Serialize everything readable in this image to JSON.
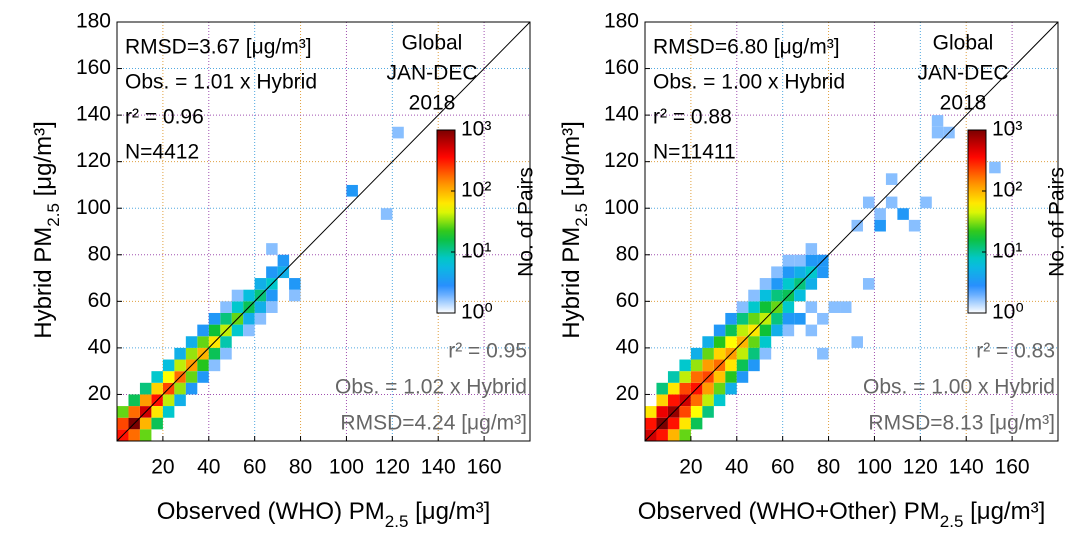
{
  "chart_data": [
    {
      "type": "hist2d",
      "stats_top": [
        "RMSD=3.67 [μg/m³]",
        "Obs. = 1.01 x Hybrid",
        "r² = 0.96",
        "N=4412"
      ],
      "stats_bottom": [
        "r² = 0.95",
        "Obs. = 1.02 x Hybrid",
        "RMSD=4.24 [μg/m³]"
      ],
      "region": [
        "Global",
        "JAN-DEC",
        "2018"
      ],
      "xlabel": {
        "text": "Observed (WHO) PM",
        "sub": "2.5",
        "unit": " [μg/m³]"
      },
      "ylabel": {
        "text": "Hybrid PM",
        "sub": "2.5",
        "unit": " [μg/m³]"
      },
      "colorbar_label": "No. of Pairs",
      "clim": [
        1,
        1000
      ],
      "cticks": [
        {
          "value": 1,
          "label": "10⁰"
        },
        {
          "value": 10,
          "label": "10¹"
        },
        {
          "value": 100,
          "label": "10²"
        },
        {
          "value": 1000,
          "label": "10³"
        }
      ],
      "color_log": true,
      "colormap": [
        "#ffffff",
        "#2a8cff",
        "#00c8d8",
        "#10c020",
        "#ffff00",
        "#ff8c00",
        "#ff0000",
        "#7a0000"
      ],
      "grid": true,
      "grid_colors": [
        "#e0a040",
        "#a050b0",
        "#50a8e0"
      ],
      "bin_width": 5,
      "xlim": [
        0,
        180
      ],
      "ylim": [
        0,
        180
      ],
      "xticks": [
        20,
        40,
        60,
        80,
        100,
        120,
        140,
        160
      ],
      "yticks": [
        20,
        40,
        60,
        80,
        100,
        120,
        140,
        160,
        180
      ],
      "cells": [
        [
          0,
          0,
          300
        ],
        [
          5,
          5,
          1000
        ],
        [
          10,
          10,
          500
        ],
        [
          15,
          15,
          300
        ],
        [
          20,
          20,
          200
        ],
        [
          25,
          25,
          150
        ],
        [
          30,
          30,
          100
        ],
        [
          35,
          35,
          80
        ],
        [
          40,
          40,
          50
        ],
        [
          45,
          45,
          30
        ],
        [
          50,
          50,
          20
        ],
        [
          55,
          55,
          10
        ],
        [
          60,
          60,
          8
        ],
        [
          65,
          65,
          5
        ],
        [
          70,
          70,
          3
        ],
        [
          0,
          5,
          200
        ],
        [
          5,
          10,
          150
        ],
        [
          10,
          15,
          100
        ],
        [
          15,
          20,
          60
        ],
        [
          20,
          25,
          40
        ],
        [
          25,
          30,
          30
        ],
        [
          30,
          35,
          25
        ],
        [
          35,
          40,
          20
        ],
        [
          40,
          45,
          12
        ],
        [
          45,
          50,
          8
        ],
        [
          50,
          55,
          5
        ],
        [
          55,
          60,
          4
        ],
        [
          60,
          65,
          3
        ],
        [
          65,
          70,
          2
        ],
        [
          70,
          75,
          2
        ],
        [
          65,
          80,
          1
        ],
        [
          5,
          0,
          150
        ],
        [
          10,
          5,
          80
        ],
        [
          15,
          10,
          50
        ],
        [
          20,
          15,
          30
        ],
        [
          25,
          20,
          25
        ],
        [
          30,
          25,
          20
        ],
        [
          35,
          30,
          15
        ],
        [
          40,
          35,
          10
        ],
        [
          45,
          40,
          6
        ],
        [
          50,
          45,
          5
        ],
        [
          55,
          50,
          3
        ],
        [
          60,
          55,
          3
        ],
        [
          65,
          60,
          2
        ],
        [
          75,
          60,
          1
        ],
        [
          75,
          65,
          2
        ],
        [
          0,
          10,
          20
        ],
        [
          5,
          15,
          10
        ],
        [
          10,
          20,
          8
        ],
        [
          15,
          25,
          5
        ],
        [
          20,
          30,
          4
        ],
        [
          25,
          35,
          3
        ],
        [
          30,
          40,
          3
        ],
        [
          35,
          45,
          2
        ],
        [
          40,
          50,
          2
        ],
        [
          45,
          55,
          1
        ],
        [
          50,
          60,
          1
        ],
        [
          10,
          0,
          20
        ],
        [
          15,
          5,
          10
        ],
        [
          20,
          10,
          5
        ],
        [
          25,
          15,
          3
        ],
        [
          30,
          20,
          2
        ],
        [
          35,
          25,
          2
        ],
        [
          40,
          30,
          1
        ],
        [
          45,
          35,
          1
        ],
        [
          55,
          45,
          1
        ],
        [
          60,
          50,
          1
        ],
        [
          65,
          55,
          1
        ],
        [
          100,
          105,
          2
        ],
        [
          115,
          95,
          1
        ],
        [
          120,
          130,
          1
        ]
      ]
    },
    {
      "type": "hist2d",
      "stats_top": [
        "RMSD=6.80 [μg/m³]",
        "Obs. = 1.00 x Hybrid",
        "r² = 0.88",
        "N=11411"
      ],
      "stats_bottom": [
        "r² = 0.83",
        "Obs. = 1.00 x Hybrid",
        "RMSD=8.13 [μg/m³]"
      ],
      "region": [
        "Global",
        "JAN-DEC",
        "2018"
      ],
      "xlabel": {
        "text": "Observed (WHO+Other) PM",
        "sub": "2.5",
        "unit": " [μg/m³]"
      },
      "ylabel": {
        "text": "Hybrid PM",
        "sub": "2.5",
        "unit": " [μg/m³]"
      },
      "colorbar_label": "No. of Pairs",
      "clim": [
        1,
        1000
      ],
      "cticks": [
        {
          "value": 1,
          "label": "10⁰"
        },
        {
          "value": 10,
          "label": "10¹"
        },
        {
          "value": 100,
          "label": "10²"
        },
        {
          "value": 1000,
          "label": "10³"
        }
      ],
      "color_log": true,
      "colormap": [
        "#ffffff",
        "#2a8cff",
        "#00c8d8",
        "#10c020",
        "#ffff00",
        "#ff8c00",
        "#ff0000",
        "#7a0000"
      ],
      "grid": true,
      "grid_colors": [
        "#e0a040",
        "#a050b0",
        "#50a8e0"
      ],
      "bin_width": 5,
      "xlim": [
        0,
        180
      ],
      "ylim": [
        0,
        180
      ],
      "xticks": [
        20,
        40,
        60,
        80,
        100,
        120,
        140,
        160
      ],
      "yticks": [
        20,
        40,
        60,
        80,
        100,
        120,
        140,
        160,
        180
      ],
      "cells": [
        [
          0,
          0,
          500
        ],
        [
          5,
          5,
          1000
        ],
        [
          10,
          10,
          800
        ],
        [
          15,
          15,
          500
        ],
        [
          20,
          20,
          300
        ],
        [
          25,
          25,
          200
        ],
        [
          30,
          30,
          150
        ],
        [
          35,
          35,
          100
        ],
        [
          40,
          40,
          80
        ],
        [
          45,
          45,
          50
        ],
        [
          50,
          50,
          30
        ],
        [
          55,
          55,
          20
        ],
        [
          60,
          60,
          10
        ],
        [
          65,
          65,
          8
        ],
        [
          70,
          70,
          5
        ],
        [
          75,
          75,
          2
        ],
        [
          0,
          5,
          300
        ],
        [
          5,
          10,
          400
        ],
        [
          10,
          15,
          300
        ],
        [
          15,
          20,
          200
        ],
        [
          20,
          25,
          150
        ],
        [
          25,
          30,
          100
        ],
        [
          30,
          35,
          60
        ],
        [
          35,
          40,
          40
        ],
        [
          40,
          45,
          30
        ],
        [
          45,
          50,
          20
        ],
        [
          50,
          55,
          12
        ],
        [
          55,
          60,
          8
        ],
        [
          60,
          65,
          5
        ],
        [
          65,
          70,
          3
        ],
        [
          70,
          75,
          2
        ],
        [
          5,
          0,
          300
        ],
        [
          10,
          5,
          300
        ],
        [
          15,
          10,
          200
        ],
        [
          20,
          15,
          150
        ],
        [
          25,
          20,
          100
        ],
        [
          30,
          25,
          70
        ],
        [
          35,
          30,
          50
        ],
        [
          40,
          35,
          30
        ],
        [
          45,
          40,
          20
        ],
        [
          50,
          45,
          12
        ],
        [
          55,
          50,
          8
        ],
        [
          60,
          55,
          5
        ],
        [
          65,
          60,
          4
        ],
        [
          70,
          65,
          3
        ],
        [
          75,
          70,
          2
        ],
        [
          0,
          10,
          50
        ],
        [
          5,
          15,
          60
        ],
        [
          10,
          20,
          50
        ],
        [
          15,
          25,
          30
        ],
        [
          20,
          30,
          25
        ],
        [
          25,
          35,
          20
        ],
        [
          30,
          40,
          15
        ],
        [
          35,
          45,
          10
        ],
        [
          40,
          50,
          8
        ],
        [
          45,
          55,
          5
        ],
        [
          50,
          60,
          4
        ],
        [
          55,
          65,
          2
        ],
        [
          60,
          70,
          2
        ],
        [
          10,
          0,
          80
        ],
        [
          15,
          5,
          50
        ],
        [
          20,
          10,
          40
        ],
        [
          25,
          15,
          30
        ],
        [
          30,
          20,
          20
        ],
        [
          35,
          25,
          15
        ],
        [
          40,
          30,
          10
        ],
        [
          45,
          35,
          8
        ],
        [
          50,
          40,
          5
        ],
        [
          55,
          45,
          3
        ],
        [
          60,
          50,
          2
        ],
        [
          65,
          50,
          2
        ],
        [
          70,
          55,
          1
        ],
        [
          5,
          20,
          8
        ],
        [
          10,
          25,
          6
        ],
        [
          15,
          30,
          5
        ],
        [
          20,
          35,
          3
        ],
        [
          25,
          40,
          3
        ],
        [
          30,
          45,
          2
        ],
        [
          35,
          50,
          2
        ],
        [
          40,
          55,
          1
        ],
        [
          45,
          60,
          1
        ],
        [
          50,
          65,
          1
        ],
        [
          55,
          70,
          1
        ],
        [
          60,
          75,
          1
        ],
        [
          15,
          0,
          20
        ],
        [
          20,
          5,
          10
        ],
        [
          25,
          10,
          8
        ],
        [
          30,
          15,
          5
        ],
        [
          35,
          20,
          3
        ],
        [
          40,
          25,
          2
        ],
        [
          45,
          30,
          2
        ],
        [
          50,
          35,
          1
        ],
        [
          60,
          45,
          1
        ],
        [
          70,
          45,
          1
        ],
        [
          75,
          50,
          1
        ],
        [
          80,
          55,
          1
        ],
        [
          85,
          55,
          1
        ],
        [
          90,
          40,
          1
        ],
        [
          75,
          35,
          1
        ],
        [
          95,
          65,
          1
        ],
        [
          100,
          95,
          1
        ],
        [
          105,
          100,
          1
        ],
        [
          110,
          95,
          2
        ],
        [
          115,
          90,
          1
        ],
        [
          105,
          110,
          1
        ],
        [
          100,
          90,
          2
        ],
        [
          95,
          100,
          1
        ],
        [
          120,
          100,
          1
        ],
        [
          125,
          130,
          1
        ],
        [
          125,
          135,
          1
        ],
        [
          130,
          130,
          1
        ],
        [
          150,
          115,
          1
        ],
        [
          65,
          75,
          1
        ],
        [
          70,
          80,
          1
        ],
        [
          90,
          90,
          1
        ]
      ]
    }
  ]
}
